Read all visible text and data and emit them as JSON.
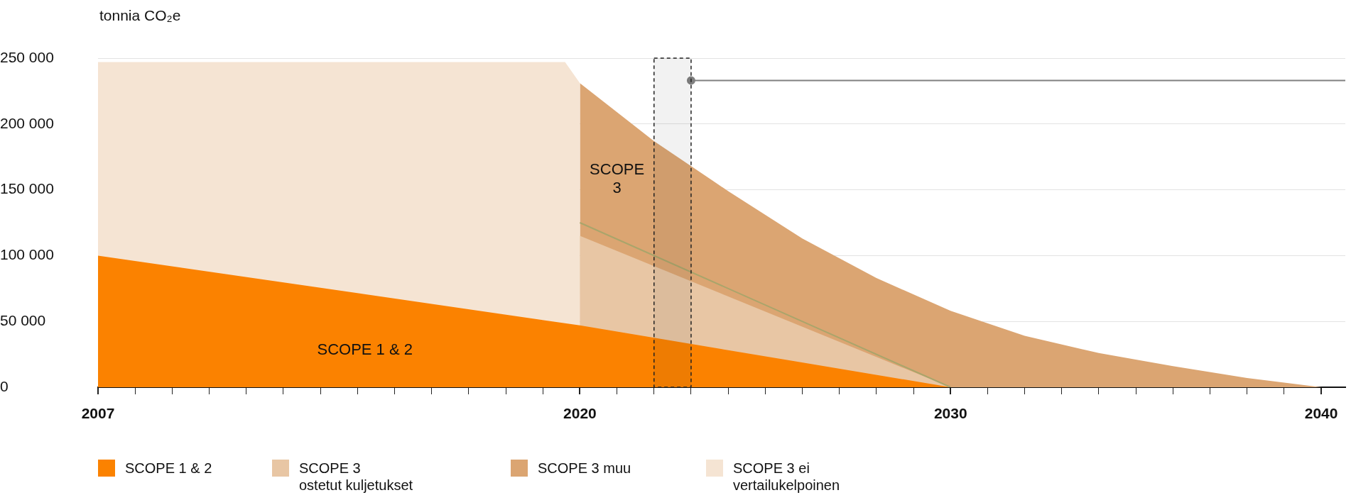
{
  "chart_data": {
    "type": "area",
    "ylabel": "tonnia CO₂e",
    "xlim": [
      2007,
      2040.65
    ],
    "xticks": [
      2007,
      {
        "value": 2008,
        "label": null
      },
      {
        "value": 2009,
        "label": null
      },
      {
        "value": 2010,
        "label": null
      },
      {
        "value": 2011,
        "label": null
      },
      {
        "value": 2012,
        "label": null
      },
      {
        "value": 2013,
        "label": null
      },
      {
        "value": 2014,
        "label": null
      },
      {
        "value": 2015,
        "label": null
      },
      {
        "value": 2016,
        "label": null
      },
      {
        "value": 2017,
        "label": null
      },
      {
        "value": 2018,
        "label": null
      },
      {
        "value": 2019,
        "label": null
      },
      2020,
      {
        "value": 2021,
        "label": null
      },
      {
        "value": 2022,
        "label": null
      },
      {
        "value": 2023,
        "label": null
      },
      {
        "value": 2024,
        "label": null
      },
      {
        "value": 2025,
        "label": null
      },
      {
        "value": 2026,
        "label": null
      },
      {
        "value": 2027,
        "label": null
      },
      {
        "value": 2028,
        "label": null
      },
      {
        "value": 2029,
        "label": null
      },
      2030,
      {
        "value": 2031,
        "label": null
      },
      {
        "value": 2032,
        "label": null
      },
      {
        "value": 2033,
        "label": null
      },
      {
        "value": 2034,
        "label": null
      },
      {
        "value": 2035,
        "label": null
      },
      {
        "value": 2036,
        "label": null
      },
      {
        "value": 2037,
        "label": null
      },
      {
        "value": 2038,
        "label": null
      },
      {
        "value": 2039,
        "label": null
      },
      2040
    ],
    "ylim": [
      0,
      250000
    ],
    "yticks": [
      0,
      {
        "value": 50000,
        "label": "50 000"
      },
      {
        "value": 100000,
        "label": "100 000"
      },
      {
        "value": 150000,
        "label": "150 000"
      },
      {
        "value": 200000,
        "label": "200 000"
      },
      {
        "value": 250000,
        "label": "250 000"
      }
    ],
    "grid": "y",
    "legend": "bottom",
    "series": [
      {
        "name": "SCOPE 1 & 2",
        "color": "#fb8200",
        "x": [
          2007,
          2020,
          2030
        ],
        "values": [
          100000,
          47000,
          0
        ]
      },
      {
        "name": "SCOPE 3\nostetut kuljetukset",
        "color": "#e8c6a4",
        "x": [
          2020,
          2030
        ],
        "values": [
          115000,
          0
        ]
      },
      {
        "name": "SCOPE 3 muu",
        "color": "#dba572",
        "x": [
          2020,
          2022,
          2024,
          2026,
          2028,
          2030,
          2032,
          2034,
          2036,
          2038,
          2040
        ],
        "values": [
          231000,
          187000,
          149000,
          113000,
          83000,
          58000,
          39000,
          26000,
          16000,
          7000,
          0
        ]
      },
      {
        "name": "SCOPE 3 ei\nvertailukelpoinen",
        "color": "#f5e4d3",
        "x": [
          2007,
          2019.6,
          2020
        ],
        "values": [
          247000,
          247000,
          231000
        ]
      },
      {
        "type": "line",
        "color": "#a9a56b",
        "x": [
          2020,
          2030
        ],
        "values": [
          125000,
          0
        ]
      },
      {
        "type": "line",
        "color": "#808080",
        "marker": "circle",
        "x": [
          2023,
          2040.65
        ],
        "values": [
          233000,
          233000
        ]
      }
    ],
    "bands": [
      {
        "axis": "x",
        "from": 2022,
        "to": 2023,
        "color": "#222222"
      }
    ],
    "annotations": [
      "SCOPE\n3",
      "SCOPE 1 & 2"
    ]
  }
}
